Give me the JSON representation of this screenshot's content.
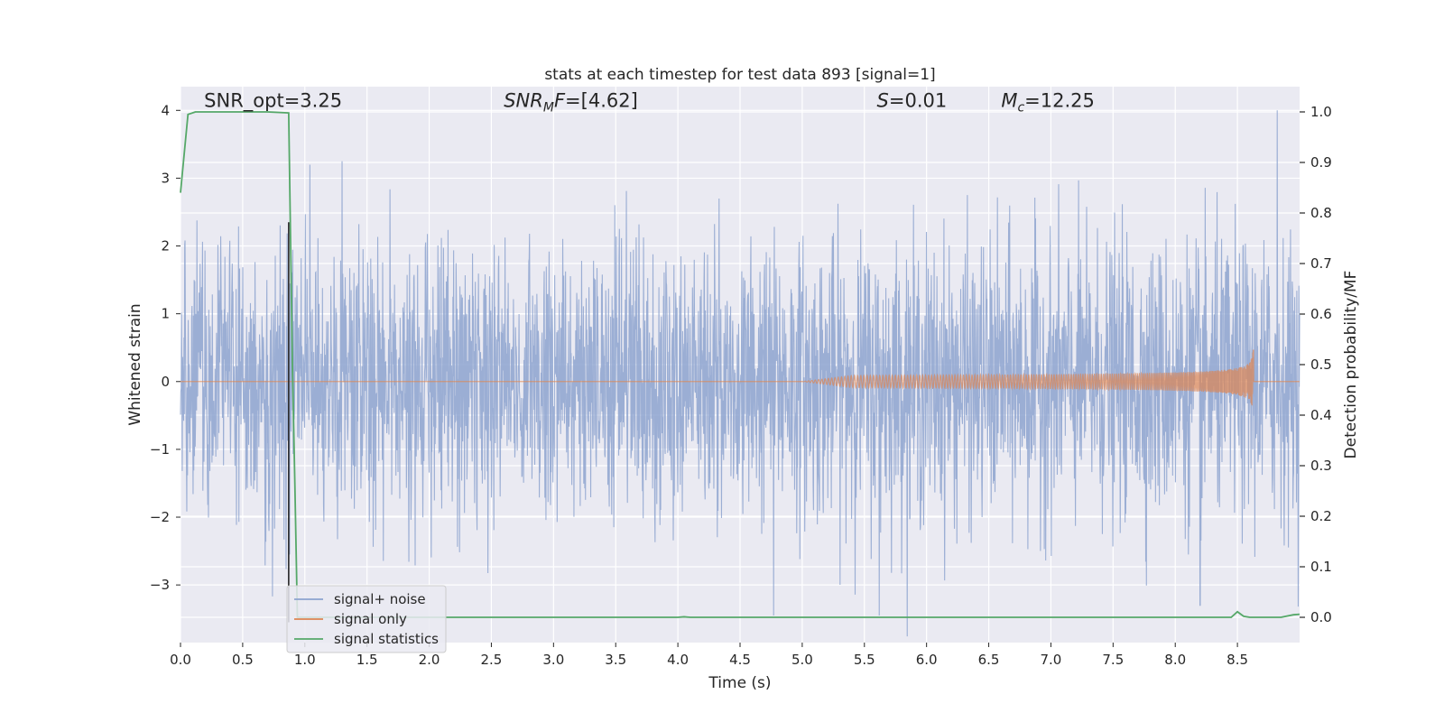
{
  "chart_data": {
    "type": "line",
    "title": "stats at each timestep for test data 893 [signal=1]",
    "xlabel": "Time (s)",
    "ylabel_left": "Whitened strain",
    "ylabel_right": "Detection probability/MF",
    "xlim": [
      0.0,
      9.0
    ],
    "ylim_left": [
      -3.85,
      4.35
    ],
    "ylim_right": [
      -0.05,
      1.05
    ],
    "x_ticks": [
      "0.0",
      "0.5",
      "1.0",
      "1.5",
      "2.0",
      "2.5",
      "3.0",
      "3.5",
      "4.0",
      "4.5",
      "5.0",
      "5.5",
      "6.0",
      "6.5",
      "7.0",
      "7.5",
      "8.0",
      "8.5"
    ],
    "x_tick_values": [
      0.0,
      0.5,
      1.0,
      1.5,
      2.0,
      2.5,
      3.0,
      3.5,
      4.0,
      4.5,
      5.0,
      5.5,
      6.0,
      6.5,
      7.0,
      7.5,
      8.0,
      8.5
    ],
    "y_ticks_left": [
      "4",
      "3",
      "2",
      "1",
      "0",
      "−1",
      "−2",
      "−3"
    ],
    "y_tick_values_left": [
      4,
      3,
      2,
      1,
      0,
      -1,
      -2,
      -3
    ],
    "y_ticks_right": [
      "1.0",
      "0.9",
      "0.8",
      "0.7",
      "0.6",
      "0.5",
      "0.4",
      "0.3",
      "0.2",
      "0.1",
      "0.0"
    ],
    "y_tick_values_right": [
      1.0,
      0.9,
      0.8,
      0.7,
      0.6,
      0.5,
      0.4,
      0.3,
      0.2,
      0.1,
      0.0
    ],
    "grid": true,
    "legend_position": "lower-left",
    "annotations": [
      {
        "text": "SNR_opt=3.25",
        "x": 0.19,
        "y_right": 1.01
      },
      {
        "text": "SNR_MF=[4.62]",
        "x": 2.6,
        "y_right": 1.01
      },
      {
        "text": "S=0.01",
        "x": 5.6,
        "y_right": 1.01
      },
      {
        "text": "M_c=12.25",
        "x": 6.6,
        "y_right": 1.01
      }
    ],
    "series": [
      {
        "name": "signal+ noise",
        "axis": "left",
        "color": "#8da3cf",
        "style": "noise",
        "amplitude_std": 1.0,
        "notable_peaks": [
          {
            "x": 8.82,
            "y": 4.0
          },
          {
            "x": 4.77,
            "y": -3.45
          },
          {
            "x": 5.62,
            "y": -3.45
          },
          {
            "x": 8.2,
            "y": -3.3
          },
          {
            "x": 1.3,
            "y": 3.25
          }
        ]
      },
      {
        "name": "signal only",
        "axis": "left",
        "color": "#dd8452",
        "style": "chirp",
        "chirp_start_x": 5.0,
        "merger_x": 8.63,
        "peak_amplitude": 0.48
      },
      {
        "name": "signal statistics",
        "axis": "right",
        "color": "#55a868",
        "points": [
          [
            0.0,
            0.84
          ],
          [
            0.06,
            0.995
          ],
          [
            0.12,
            1.0
          ],
          [
            0.3,
            1.0
          ],
          [
            0.5,
            1.0
          ],
          [
            0.7,
            1.0
          ],
          [
            0.87,
            0.998
          ],
          [
            0.9,
            0.5
          ],
          [
            0.92,
            0.26
          ],
          [
            0.94,
            0.0
          ],
          [
            1.5,
            0.0
          ],
          [
            2.5,
            0.0
          ],
          [
            3.5,
            0.0
          ],
          [
            4.0,
            0.0
          ],
          [
            4.05,
            0.001
          ],
          [
            4.1,
            0.0
          ],
          [
            5.0,
            0.0
          ],
          [
            6.0,
            0.0
          ],
          [
            7.0,
            0.0
          ],
          [
            8.0,
            0.0
          ],
          [
            8.45,
            0.0
          ],
          [
            8.5,
            0.011
          ],
          [
            8.55,
            0.002
          ],
          [
            8.6,
            0.0
          ],
          [
            8.85,
            0.0
          ],
          [
            8.95,
            0.005
          ],
          [
            9.0,
            0.006
          ]
        ]
      }
    ],
    "vertical_marker": {
      "x": 0.87,
      "color": "#262626"
    }
  },
  "legend": {
    "items": [
      {
        "label": "signal+ noise",
        "color": "#8da3cf"
      },
      {
        "label": "signal only",
        "color": "#dd8452"
      },
      {
        "label": "signal statistics",
        "color": "#55a868"
      }
    ]
  },
  "colors": {
    "plot_background": "#eaeaf2",
    "grid": "#ffffff",
    "text": "#262626"
  }
}
